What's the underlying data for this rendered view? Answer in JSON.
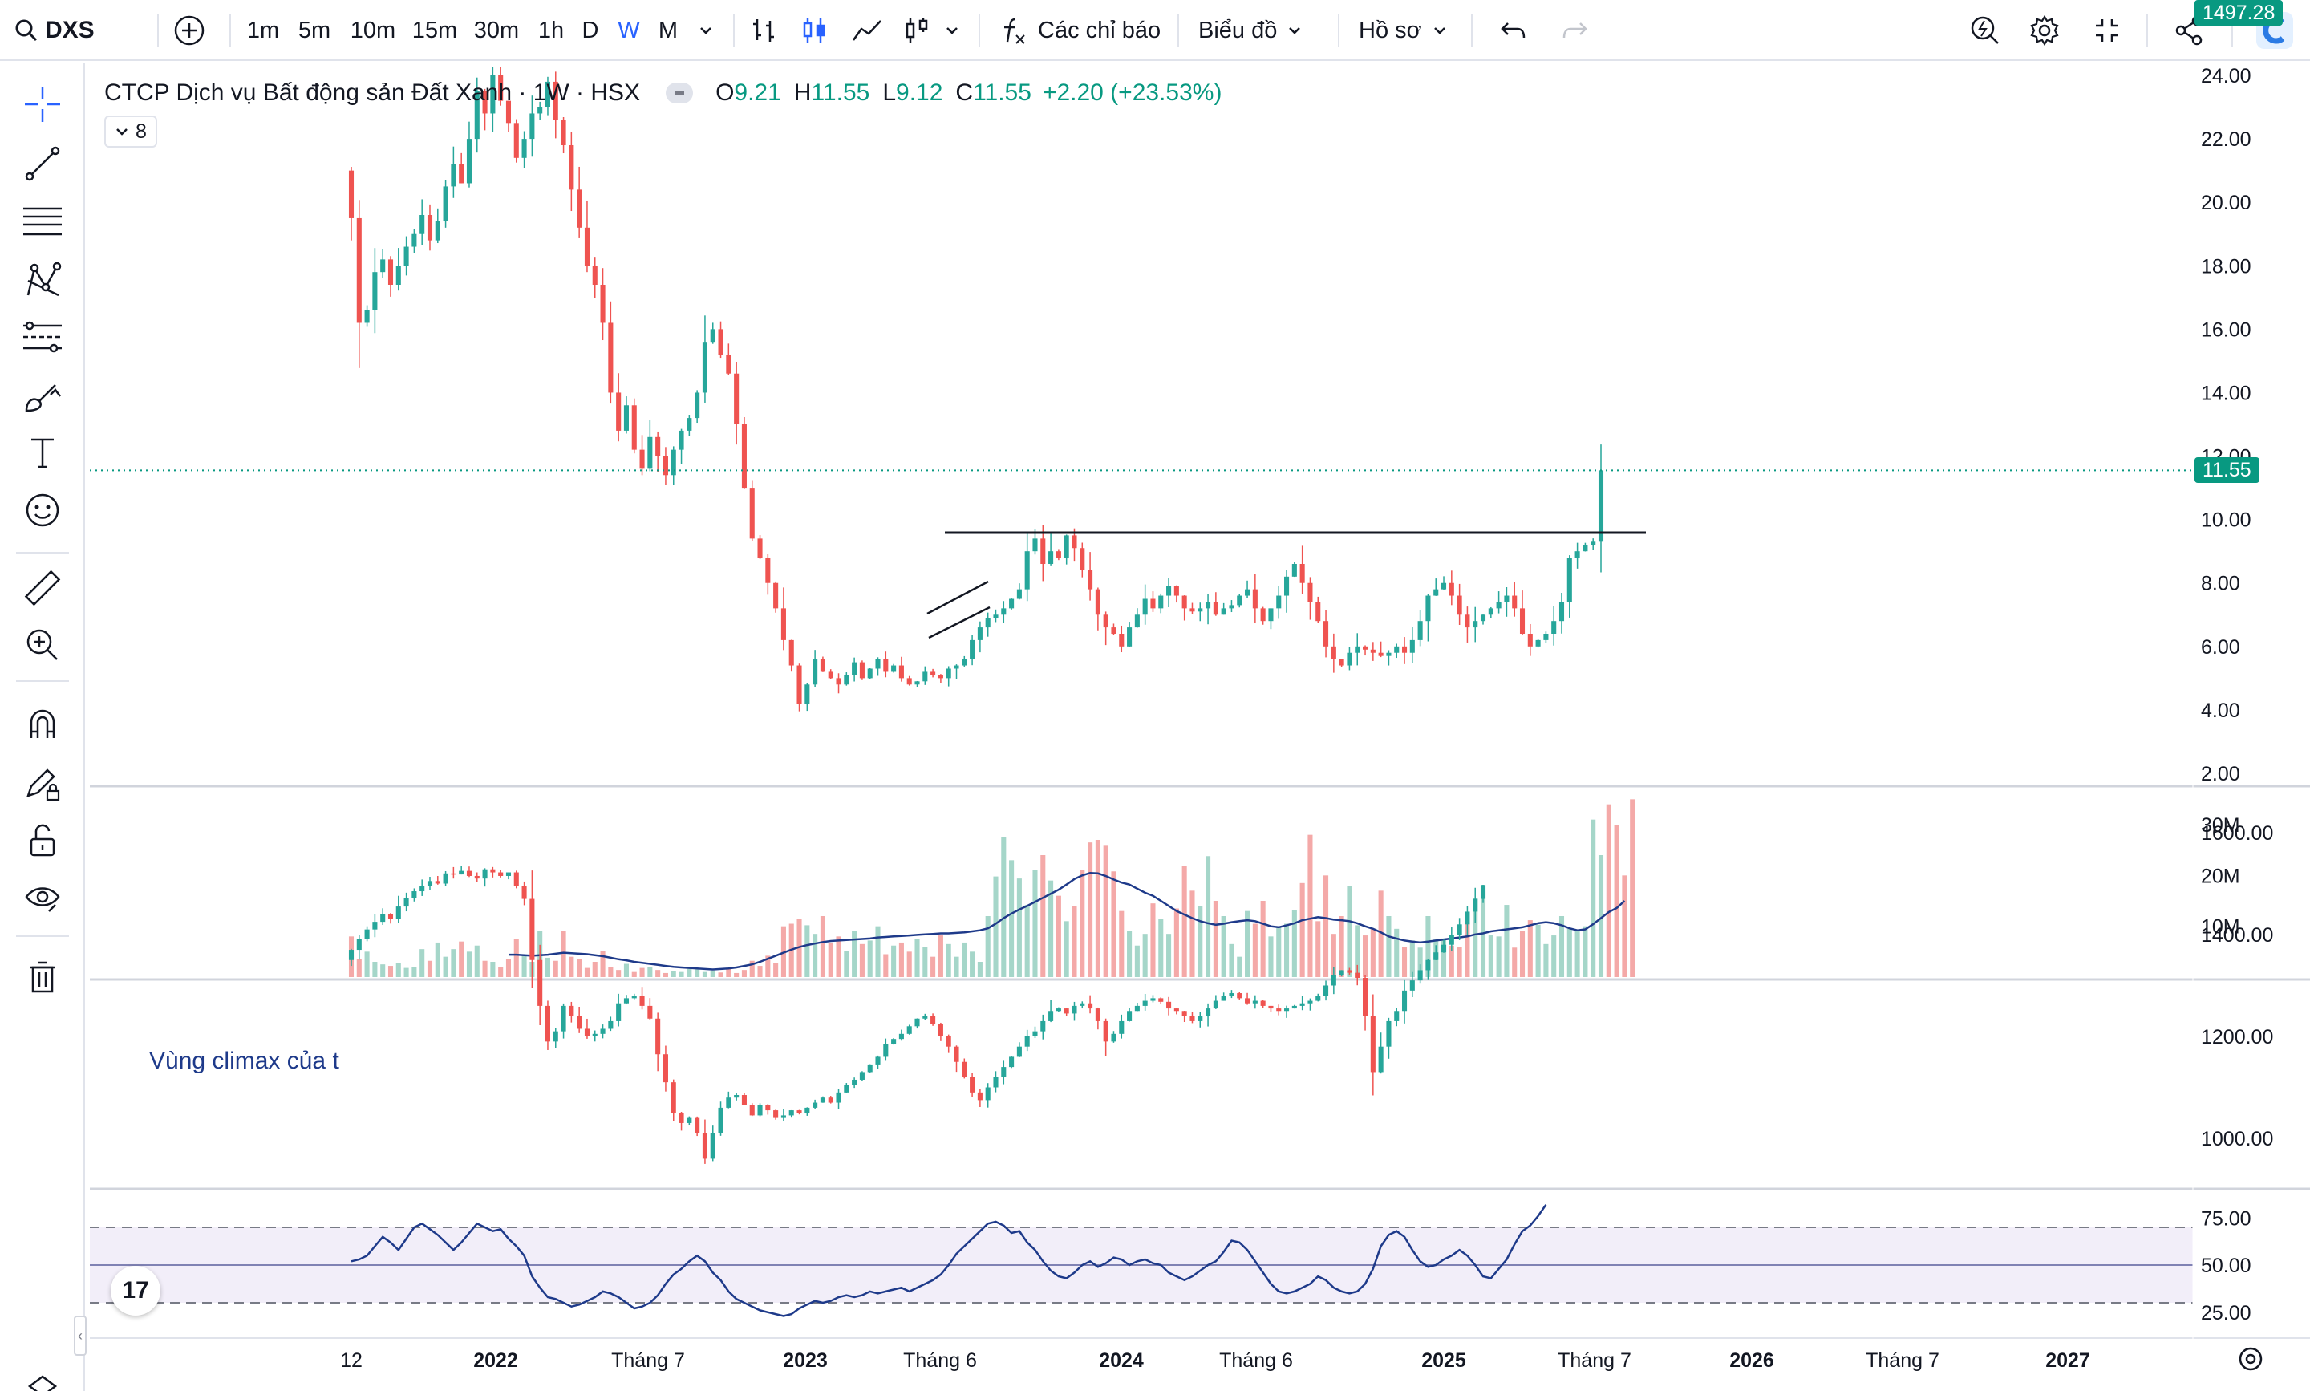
{
  "toolbar": {
    "symbol": "DXS",
    "intervals": [
      "1m",
      "5m",
      "10m",
      "15m",
      "30m",
      "1h",
      "D",
      "W",
      "M"
    ],
    "active_interval": "W",
    "indicators_label": "Các chỉ báo",
    "chart_menu_label": "Biểu đồ",
    "profile_menu_label": "Hồ sơ"
  },
  "legend": {
    "title": "CTCP Dịch vụ Bất động sản Đất Xanh · 1W · HSX",
    "open_key": "O",
    "open": "9.21",
    "high_key": "H",
    "high": "11.55",
    "low_key": "L",
    "low": "9.12",
    "close_key": "C",
    "close": "11.55",
    "change": "+2.20 (+23.53%)",
    "collapsed_count": "8"
  },
  "price_tags": {
    "last_price": "11.55",
    "index_last": "1497.28"
  },
  "annotation_text": "Vùng climax của t",
  "colors": {
    "up": "#26a69a",
    "down": "#ef5350",
    "accent": "#2962ff",
    "ma_line": "#1e3a8a",
    "rsi_band": "#7e57c2"
  },
  "chart_data": [
    {
      "type": "candlestick",
      "name": "DXS",
      "x_range": [
        "2021-11-29",
        "2025-07-21"
      ],
      "x_ticks": [
        "12",
        "2022",
        "Tháng 7",
        "2023",
        "Tháng 6",
        "2024",
        "Tháng 6",
        "2025",
        "Tháng 7",
        "2026",
        "Tháng 7",
        "2027"
      ],
      "y_ticks": [
        "2.00",
        "4.00",
        "6.00",
        "8.00",
        "10.00",
        "12.00",
        "14.00",
        "16.00",
        "18.00",
        "20.00",
        "22.00",
        "24.00"
      ],
      "ylim": [
        2,
        24
      ],
      "close": [
        19.5,
        16.2,
        16.6,
        17.8,
        18.2,
        17.4,
        18.0,
        18.6,
        19.0,
        19.6,
        18.8,
        19.4,
        20.5,
        21.2,
        20.6,
        22.0,
        23.5,
        22.8,
        24.0,
        23.2,
        22.5,
        21.4,
        22.0,
        22.8,
        23.0,
        23.8,
        22.6,
        21.8,
        20.4,
        19.2,
        18.0,
        17.4,
        16.2,
        14.0,
        12.8,
        13.6,
        12.2,
        11.6,
        12.6,
        12.0,
        11.4,
        12.2,
        12.8,
        13.2,
        14.0,
        15.6,
        16.0,
        15.2,
        14.6,
        13.0,
        11.0,
        9.4,
        8.8,
        8.0,
        7.2,
        6.2,
        5.4,
        4.2,
        4.8,
        5.6,
        5.2,
        5.0,
        4.8,
        5.1,
        5.5,
        5.0,
        5.3,
        5.6,
        5.2,
        5.4,
        5.0,
        4.8,
        4.9,
        5.2,
        5.1,
        5.0,
        5.3,
        5.4,
        5.6,
        6.2,
        6.6,
        6.9,
        7.0,
        7.2,
        7.5,
        7.8,
        9.0,
        9.4,
        8.6,
        9.0,
        8.8,
        9.5,
        9.1,
        8.4,
        7.8,
        7.0,
        6.6,
        6.4,
        6.0,
        6.6,
        7.0,
        7.5,
        7.2,
        7.6,
        7.9,
        7.6,
        7.2,
        7.1,
        7.2,
        7.4,
        7.0,
        7.2,
        7.3,
        7.6,
        7.8,
        7.2,
        6.8,
        7.2,
        7.6,
        8.2,
        8.6,
        8.0,
        7.4,
        6.8,
        6.0,
        5.6,
        5.4,
        5.8,
        6.0,
        5.9,
        5.8,
        5.7,
        5.8,
        6.0,
        5.8,
        6.2,
        6.8,
        7.6,
        7.8,
        8.0,
        7.6,
        7.0,
        6.6,
        6.8,
        7.0,
        7.2,
        7.4,
        7.6,
        7.2,
        6.4,
        6.0,
        6.2,
        6.4,
        6.8,
        7.4,
        8.8,
        9.0,
        9.2,
        9.3,
        11.55
      ]
    },
    {
      "type": "bar",
      "name": "Volume",
      "y_ticks": [
        "10M",
        "20M",
        "30M"
      ],
      "ylim": [
        0,
        36
      ],
      "values": [
        8.0,
        3.5,
        5.0,
        3.0,
        2.5,
        2.2,
        2.8,
        1.8,
        2.0,
        5.5,
        3.2,
        6.8,
        4.0,
        5.5,
        7.0,
        5.0,
        6.2,
        3.2,
        3.0,
        2.0,
        3.5,
        7.5,
        4.2,
        3.0,
        9.0,
        3.8,
        3.2,
        9.0,
        4.0,
        3.6,
        1.8,
        3.0,
        5.2,
        2.0,
        1.4,
        2.6,
        1.0,
        1.8,
        2.0,
        1.4,
        0.8,
        1.2,
        1.0,
        1.6,
        1.5,
        1.0,
        1.3,
        0.9,
        1.7,
        0.8,
        1.4,
        3.2,
        2.2,
        4.2,
        2.8,
        10.0,
        10.5,
        11.5,
        10.2,
        8.5,
        12.0,
        6.8,
        8.0,
        5.2,
        9.0,
        6.5,
        7.2,
        10.0,
        4.5,
        6.2,
        6.8,
        5.0,
        7.5,
        6.0,
        4.0,
        8.2,
        6.5,
        4.0,
        6.8,
        5.0,
        3.0,
        12.0,
        19.8,
        27.5,
        23.0,
        19.4,
        14.2,
        21.0,
        24.0,
        19.0,
        16.0,
        11.0,
        14.0,
        21.0,
        26.5,
        27.0,
        26.0,
        20.8,
        13.0,
        9.0,
        6.2,
        8.5,
        14.5,
        11.5,
        8.5,
        13.5,
        21.8,
        17.0,
        14.0,
        23.8,
        15.0,
        12.0,
        6.5,
        4.0,
        13.0,
        10.5,
        15.0,
        8.0,
        10.0,
        10.5,
        13.2,
        18.5,
        28.0,
        11.0,
        20.0,
        8.5,
        12.0,
        18.0,
        10.2,
        8.2,
        9.5,
        17.0,
        12.0,
        9.5,
        6.0,
        7.2,
        5.8,
        12.0,
        7.4,
        7.6,
        6.2,
        6.0,
        10.8,
        15.5,
        17.0,
        8.2,
        8.0,
        14.2,
        5.8,
        9.0,
        11.2,
        10.3,
        6.5,
        8.2,
        12.0,
        9.5,
        9.0,
        10.0,
        31.0,
        24.0,
        34.0,
        30.0,
        20.0,
        35.0
      ],
      "ma": [
        null,
        null,
        null,
        null,
        null,
        null,
        null,
        null,
        null,
        null,
        null,
        null,
        null,
        null,
        null,
        null,
        null,
        null,
        null,
        null,
        4.4,
        4.4,
        4.3,
        4.2,
        4.3,
        4.4,
        4.6,
        4.8,
        4.7,
        4.6,
        4.5,
        4.3,
        4.1,
        3.8,
        3.5,
        3.3,
        3.0,
        2.8,
        2.6,
        2.4,
        2.2,
        2.0,
        1.9,
        1.8,
        1.7,
        1.6,
        1.5,
        1.6,
        1.7,
        1.9,
        2.2,
        2.5,
        3.0,
        3.6,
        4.2,
        4.8,
        5.4,
        5.9,
        6.3,
        6.6,
        6.9,
        7.1,
        7.2,
        7.3,
        7.4,
        7.5,
        7.6,
        7.8,
        7.9,
        8.0,
        8.1,
        8.2,
        8.3,
        8.4,
        8.5,
        8.6,
        8.6,
        8.7,
        8.8,
        9.0,
        9.2,
        9.6,
        10.5,
        11.6,
        12.5,
        13.3,
        14.0,
        14.8,
        15.6,
        16.4,
        17.2,
        18.2,
        19.3,
        20.0,
        20.5,
        20.4,
        19.9,
        19.2,
        18.6,
        18.2,
        17.4,
        16.6,
        16.0,
        15.0,
        14.0,
        13.0,
        12.3,
        11.6,
        11.0,
        10.6,
        10.3,
        10.5,
        10.8,
        11.0,
        11.2,
        11.0,
        10.5,
        10.0,
        9.8,
        10.2,
        10.6,
        11.2,
        11.5,
        11.8,
        11.6,
        11.3,
        11.2,
        11.0,
        10.6,
        10.0,
        9.5,
        8.8,
        8.0,
        7.6,
        7.2,
        7.0,
        6.8,
        7.0,
        7.2,
        7.4,
        7.6,
        7.8,
        8.0,
        8.4,
        8.6,
        9.0,
        9.2,
        9.4,
        9.6,
        9.8,
        10.2,
        10.6,
        10.8,
        10.6,
        10.2,
        9.6,
        9.2,
        9.4,
        10.4,
        11.6,
        12.8,
        13.6,
        15.0
      ]
    },
    {
      "type": "candlestick",
      "name": "Index",
      "y_ticks": [
        "1000.00",
        "1200.00",
        "1400.00",
        "1600.00"
      ],
      "ylim": [
        900,
        1600
      ],
      "close": [
        1370,
        1392,
        1410,
        1425,
        1440,
        1430,
        1455,
        1472,
        1485,
        1495,
        1505,
        1500,
        1520,
        1518,
        1525,
        1515,
        1510,
        1528,
        1522,
        1515,
        1522,
        1495,
        1470,
        1350,
        1260,
        1190,
        1210,
        1260,
        1240,
        1215,
        1200,
        1205,
        1215,
        1230,
        1265,
        1275,
        1280,
        1260,
        1235,
        1165,
        1110,
        1050,
        1030,
        1040,
        1010,
        960,
        1010,
        1060,
        1080,
        1085,
        1065,
        1045,
        1065,
        1055,
        1040,
        1045,
        1055,
        1050,
        1060,
        1070,
        1080,
        1070,
        1090,
        1105,
        1115,
        1130,
        1145,
        1160,
        1185,
        1195,
        1205,
        1220,
        1235,
        1240,
        1225,
        1200,
        1180,
        1150,
        1120,
        1090,
        1075,
        1100,
        1120,
        1140,
        1160,
        1180,
        1200,
        1210,
        1230,
        1250,
        1255,
        1245,
        1260,
        1265,
        1255,
        1230,
        1190,
        1205,
        1230,
        1250,
        1260,
        1270,
        1275,
        1268,
        1255,
        1250,
        1240,
        1230,
        1240,
        1255,
        1270,
        1280,
        1285,
        1275,
        1265,
        1270,
        1260,
        1255,
        1250,
        1255,
        1260,
        1265,
        1270,
        1280,
        1300,
        1320,
        1330,
        1325,
        1315,
        1240,
        1130,
        1180,
        1230,
        1250,
        1290,
        1310,
        1330,
        1350,
        1365,
        1380,
        1400,
        1420,
        1445,
        1470,
        1497.28
      ]
    },
    {
      "type": "line",
      "name": "RSI",
      "y_ticks": [
        "25.00",
        "50.00",
        "75.00"
      ],
      "ylim": [
        15,
        85
      ],
      "band": [
        30,
        70
      ],
      "midline": 50,
      "values": [
        52,
        53,
        55,
        60,
        65,
        62,
        58,
        64,
        70,
        72,
        69,
        66,
        62,
        58,
        62,
        67,
        72,
        70,
        68,
        69,
        64,
        60,
        55,
        44,
        38,
        33,
        32,
        30,
        28,
        29,
        31,
        33,
        36,
        35,
        33,
        30,
        27,
        28,
        30,
        34,
        40,
        45,
        48,
        52,
        55,
        52,
        46,
        42,
        36,
        32,
        30,
        28,
        26,
        25,
        24,
        23,
        24,
        27,
        29,
        31,
        30,
        31,
        33,
        34,
        33,
        34,
        36,
        35,
        36,
        37,
        38,
        36,
        38,
        40,
        42,
        45,
        50,
        56,
        60,
        64,
        68,
        72,
        73,
        71,
        67,
        68,
        62,
        58,
        52,
        47,
        44,
        43,
        46,
        50,
        52,
        49,
        51,
        54,
        53,
        50,
        52,
        53,
        51,
        50,
        46,
        44,
        42,
        44,
        47,
        50,
        52,
        57,
        63,
        62,
        58,
        52,
        46,
        40,
        36,
        35,
        36,
        38,
        40,
        44,
        42,
        38,
        36,
        35,
        36,
        40,
        48,
        60,
        66,
        68,
        65,
        58,
        52,
        49,
        50,
        53,
        55,
        58,
        55,
        50,
        44,
        43,
        48,
        53,
        61,
        68,
        71,
        76,
        82
      ]
    }
  ]
}
